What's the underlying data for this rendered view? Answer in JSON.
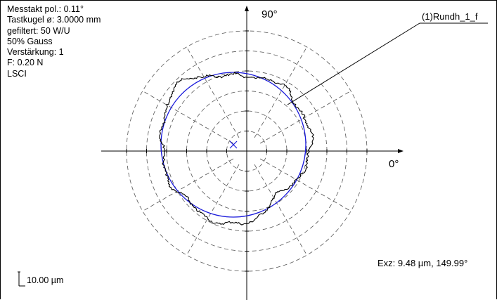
{
  "info": {
    "lines": [
      "Messtakt pol.: 0.11°",
      "Tastkugel ø: 3.0000 mm",
      "gefiltert: 50 W/U",
      "50% Gauss",
      "Verstärkung: 1",
      "F: 0.20 N",
      "LSCI"
    ]
  },
  "chart_data": {
    "type": "polar",
    "angle_labels": {
      "deg90": "90°",
      "deg0": "0°"
    },
    "grid": {
      "rings": 6,
      "radial_lines_every_deg": 30,
      "style": "dashed"
    },
    "series": [
      {
        "name": "(1)Rundh_1_f",
        "kind": "measured-profile",
        "color": "#000000"
      },
      {
        "kind": "reference-circle",
        "color": "#1a1adb"
      }
    ],
    "eccentricity": {
      "label": "Exz:  9.48 µm, 149.99°",
      "value_um": 9.48,
      "angle_deg": 149.99
    },
    "scale_bar": {
      "label": "10.00 µm",
      "value_um": 10.0
    },
    "center_marker_color": "#1a1adb"
  }
}
